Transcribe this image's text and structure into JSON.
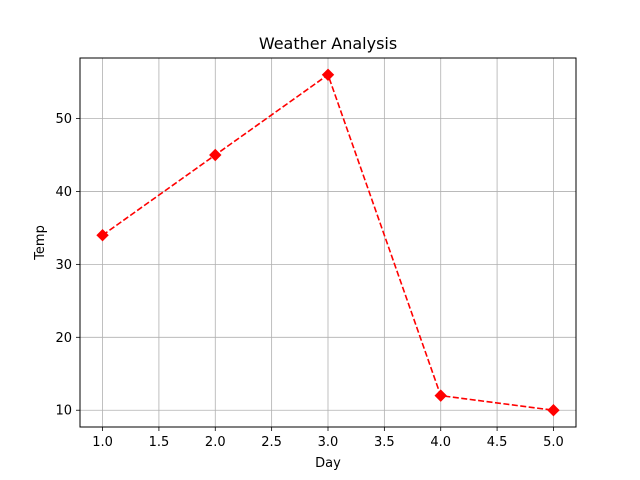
{
  "chart_data": {
    "type": "line",
    "title": "Weather Analysis",
    "xlabel": "Day",
    "ylabel": "Temp",
    "x": [
      1,
      2,
      3,
      4,
      5
    ],
    "series": [
      {
        "values": [
          34,
          45,
          56,
          12,
          10
        ],
        "color": "#ff0000",
        "line_style": "dashed",
        "marker": "diamond"
      }
    ],
    "xlim": [
      0.8,
      5.2
    ],
    "ylim": [
      7.7,
      58.3
    ],
    "xticks": [
      1.0,
      1.5,
      2.0,
      2.5,
      3.0,
      3.5,
      4.0,
      4.5,
      5.0
    ],
    "xtick_labels": [
      "1.0",
      "1.5",
      "2.0",
      "2.5",
      "3.0",
      "3.5",
      "4.0",
      "4.5",
      "5.0"
    ],
    "yticks": [
      10,
      20,
      30,
      40,
      50
    ],
    "ytick_labels": [
      "10",
      "20",
      "30",
      "40",
      "50"
    ],
    "grid": true
  }
}
